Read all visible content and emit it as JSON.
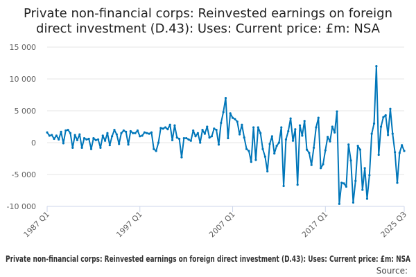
{
  "chart_data": {
    "type": "line",
    "title_lines": [
      "Private non-financial corps: Reinvested earnings on foreign",
      "direct investment (D.43): Uses: Current price: £m: NSA"
    ],
    "xlabel": "",
    "ylabel": "",
    "ylim": [
      -10000,
      15000
    ],
    "y_ticks": [
      15000,
      10000,
      5000,
      0,
      -5000,
      -10000
    ],
    "y_tick_labels": [
      "15 000",
      "10 000",
      "5 000",
      "0",
      "-5 000",
      "-10 000"
    ],
    "x_ticks": [
      {
        "label": "1987 Q1",
        "index": 0
      },
      {
        "label": "1997 Q1",
        "index": 40
      },
      {
        "label": "2007 Q1",
        "index": 80
      },
      {
        "label": "2017 Q1",
        "index": 120
      },
      {
        "label": "2025 Q3",
        "index": 154
      }
    ],
    "grid": "horizontal",
    "line_color": "#0076b9",
    "series": [
      {
        "name": "Private non-financial corps: Reinvested earnings on foreign direct investment (D.43): Uses: Current price: £m: NSA",
        "start": "1987 Q1",
        "end": "2025 Q3",
        "values": [
          1600,
          1100,
          1200,
          600,
          1100,
          500,
          1700,
          -100,
          1900,
          2000,
          1500,
          -800,
          1200,
          400,
          1300,
          -800,
          700,
          500,
          600,
          -1000,
          700,
          400,
          500,
          -800,
          1100,
          300,
          1500,
          -400,
          1000,
          2000,
          1300,
          -200,
          1500,
          1900,
          1700,
          -300,
          1800,
          1500,
          1500,
          1900,
          1000,
          1100,
          1600,
          1500,
          1400,
          1600,
          -1000,
          -1300,
          0,
          2300,
          2200,
          2400,
          2100,
          2800,
          400,
          2700,
          800,
          600,
          -2300,
          700,
          700,
          500,
          300,
          1900,
          1000,
          1500,
          0,
          2000,
          1400,
          2500,
          800,
          1000,
          2200,
          2000,
          -300,
          3100,
          4800,
          7000,
          700,
          4600,
          3900,
          3700,
          3300,
          1300,
          2800,
          800,
          -1000,
          -1300,
          -3000,
          2400,
          -2700,
          2400,
          1500,
          -1000,
          -2200,
          -4500,
          -200,
          1000,
          -1700,
          -500,
          0,
          2400,
          -6800,
          500,
          1800,
          3800,
          300,
          2100,
          -6600,
          2700,
          1100,
          3400,
          -1100,
          -1600,
          -3500,
          -800,
          2400,
          3900,
          -4000,
          -3400,
          -1200,
          900,
          200,
          2500,
          1600,
          4900,
          -9600,
          -6300,
          -6400,
          -6900,
          -300,
          -2800,
          -9400,
          -6000,
          -500,
          -1100,
          -7400,
          -4000,
          -8800,
          -5100,
          1400,
          3000,
          12000,
          -1900,
          2500,
          4000,
          4300,
          1200,
          5300,
          1400,
          -1500,
          -6300,
          -1600,
          -400,
          -1300
        ]
      }
    ],
    "source_label": "Source:"
  }
}
